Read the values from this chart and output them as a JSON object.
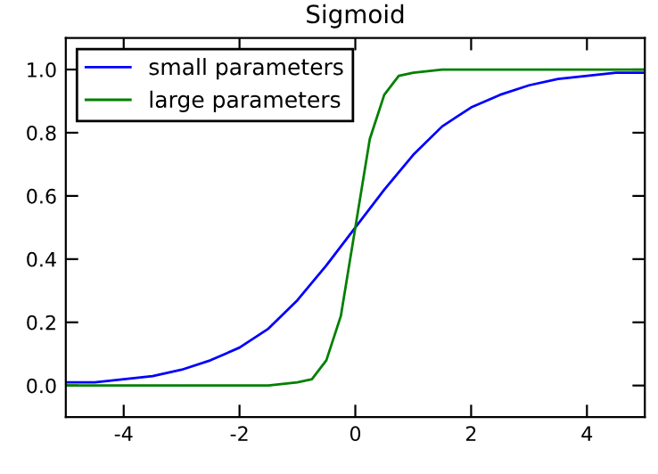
{
  "chart_data": {
    "type": "line",
    "title": "Sigmoid",
    "xlim": [
      -5,
      5
    ],
    "xticks": [
      -4,
      -2,
      0,
      2,
      4
    ],
    "ylim": [
      -0.1,
      1.1
    ],
    "yticks": [
      {
        "value": 0,
        "label": "0.0"
      },
      {
        "value": 0.2,
        "label": "0.2"
      },
      {
        "value": 0.4,
        "label": "0.4"
      },
      {
        "value": 0.6,
        "label": "0.6"
      },
      {
        "value": 0.8,
        "label": "0.8"
      },
      {
        "value": 1,
        "label": "1.0"
      }
    ],
    "grid": false,
    "legend": "top left",
    "marker": "none",
    "line_style": "solid",
    "series": [
      {
        "name": "small parameters",
        "color": "#0000ff",
        "x": [
          -5,
          -4.5,
          -4,
          -3.5,
          -3,
          -2.5,
          -2,
          -1.5,
          -1,
          -0.5,
          0,
          0.5,
          1,
          1.5,
          2,
          2.5,
          3,
          3.5,
          4,
          4.5,
          5
        ],
        "values": [
          0.01,
          0.01,
          0.02,
          0.03,
          0.05,
          0.08,
          0.12,
          0.18,
          0.27,
          0.38,
          0.5,
          0.62,
          0.73,
          0.82,
          0.88,
          0.92,
          0.95,
          0.97,
          0.98,
          0.99,
          0.99
        ]
      },
      {
        "name": "large parameters",
        "color": "#008000",
        "x": [
          -5,
          -2,
          -1.5,
          -1,
          -0.75,
          -0.5,
          -0.25,
          0,
          0.25,
          0.5,
          0.75,
          1,
          1.5,
          2,
          5
        ],
        "values": [
          0,
          0,
          0,
          0.01,
          0.02,
          0.08,
          0.22,
          0.5,
          0.78,
          0.92,
          0.98,
          0.99,
          1.0,
          1.0,
          1.0
        ]
      }
    ]
  }
}
